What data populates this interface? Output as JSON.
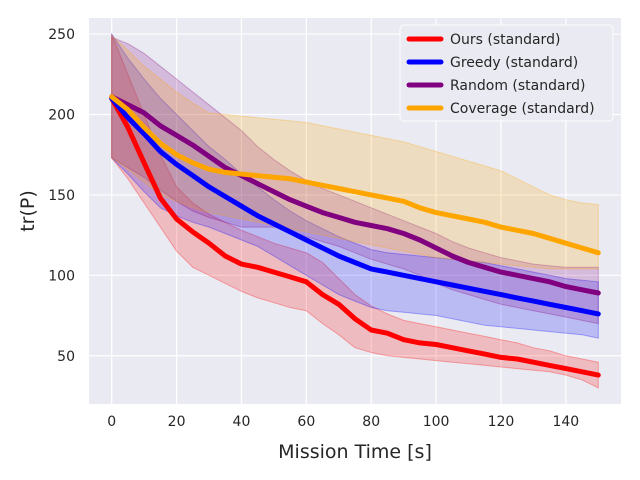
{
  "chart_data": {
    "type": "line",
    "title": "",
    "xlabel": "Mission Time [s]",
    "ylabel": "tr(P)",
    "xlim": [
      -7,
      157
    ],
    "ylim": [
      20,
      260
    ],
    "xticks": [
      0,
      20,
      40,
      60,
      80,
      100,
      120,
      140
    ],
    "yticks": [
      50,
      100,
      150,
      200,
      250
    ],
    "grid": true,
    "legend_position": "top-right",
    "x": [
      0,
      5,
      10,
      15,
      20,
      25,
      30,
      35,
      40,
      45,
      50,
      55,
      60,
      65,
      70,
      75,
      80,
      85,
      90,
      95,
      100,
      105,
      110,
      115,
      120,
      125,
      130,
      135,
      140,
      145,
      150
    ],
    "series": [
      {
        "name": "Ours (standard)",
        "color": "#ff0000",
        "values": [
          210,
          192,
          170,
          148,
          135,
          127,
          120,
          112,
          107,
          105,
          102,
          99,
          96,
          88,
          82,
          73,
          66,
          64,
          60,
          58,
          57,
          55,
          53,
          51,
          49,
          48,
          46,
          44,
          42,
          40,
          38
        ],
        "upper": [
          250,
          225,
          200,
          175,
          155,
          145,
          138,
          133,
          128,
          124,
          120,
          117,
          114,
          108,
          98,
          88,
          81,
          76,
          72,
          70,
          68,
          66,
          64,
          62,
          60,
          58,
          55,
          53,
          50,
          48,
          46
        ],
        "lower": [
          173,
          160,
          145,
          130,
          115,
          105,
          100,
          95,
          90,
          86,
          83,
          80,
          78,
          70,
          63,
          55,
          52,
          50,
          49,
          48,
          47,
          46,
          45,
          44,
          43,
          42,
          41,
          40,
          38,
          35,
          30
        ]
      },
      {
        "name": "Greedy (standard)",
        "color": "#0000ff",
        "values": [
          210,
          198,
          188,
          177,
          169,
          162,
          155,
          149,
          143,
          137,
          132,
          127,
          122,
          117,
          112,
          108,
          104,
          102,
          100,
          98,
          96,
          94,
          92,
          90,
          88,
          86,
          84,
          82,
          80,
          78,
          76
        ],
        "upper": [
          250,
          235,
          222,
          210,
          200,
          190,
          180,
          172,
          163,
          155,
          147,
          140,
          134,
          129,
          124,
          120,
          116,
          114,
          113,
          112,
          111,
          110,
          109,
          108,
          106,
          104,
          102,
          100,
          98,
          97,
          96
        ],
        "lower": [
          173,
          163,
          152,
          142,
          137,
          133,
          130,
          126,
          122,
          118,
          112,
          106,
          100,
          94,
          88,
          84,
          80,
          78,
          77,
          76,
          75,
          73,
          71,
          69,
          68,
          67,
          66,
          65,
          64,
          63,
          61
        ]
      },
      {
        "name": "Random (standard)",
        "color": "#800080",
        "values": [
          211,
          206,
          201,
          193,
          187,
          181,
          174,
          167,
          162,
          157,
          152,
          147,
          143,
          139,
          136,
          133,
          131,
          129,
          126,
          122,
          117,
          112,
          108,
          105,
          102,
          100,
          98,
          96,
          93,
          91,
          89
        ],
        "upper": [
          248,
          244,
          238,
          230,
          222,
          214,
          206,
          198,
          190,
          180,
          172,
          165,
          159,
          154,
          150,
          146,
          142,
          138,
          134,
          130,
          126,
          121,
          117,
          114,
          111,
          109,
          107,
          106,
          105,
          105,
          105
        ],
        "lower": [
          173,
          167,
          161,
          153,
          146,
          140,
          136,
          133,
          130,
          130,
          130,
          128,
          124,
          121,
          118,
          114,
          110,
          107,
          104,
          100,
          95,
          91,
          88,
          85,
          82,
          80,
          78,
          76,
          74,
          72,
          70
        ]
      },
      {
        "name": "Coverage (standard)",
        "color": "#ffa500",
        "values": [
          211,
          203,
          192,
          182,
          175,
          170,
          166,
          164,
          163,
          162,
          161,
          160,
          158,
          156,
          154,
          152,
          150,
          148,
          146,
          142,
          139,
          137,
          135,
          133,
          130,
          128,
          126,
          123,
          120,
          117,
          114
        ],
        "upper": [
          249,
          240,
          230,
          222,
          214,
          207,
          201,
          200,
          199,
          198,
          197,
          196,
          195,
          193,
          191,
          189,
          187,
          185,
          183,
          180,
          177,
          174,
          171,
          168,
          165,
          160,
          155,
          150,
          147,
          145,
          144
        ],
        "lower": [
          173,
          166,
          158,
          150,
          146,
          142,
          139,
          137,
          135,
          133,
          131,
          129,
          127,
          125,
          123,
          121,
          119,
          117,
          115,
          113,
          111,
          110,
          109,
          108,
          107,
          106,
          105,
          104,
          104,
          104,
          104
        ]
      }
    ]
  }
}
